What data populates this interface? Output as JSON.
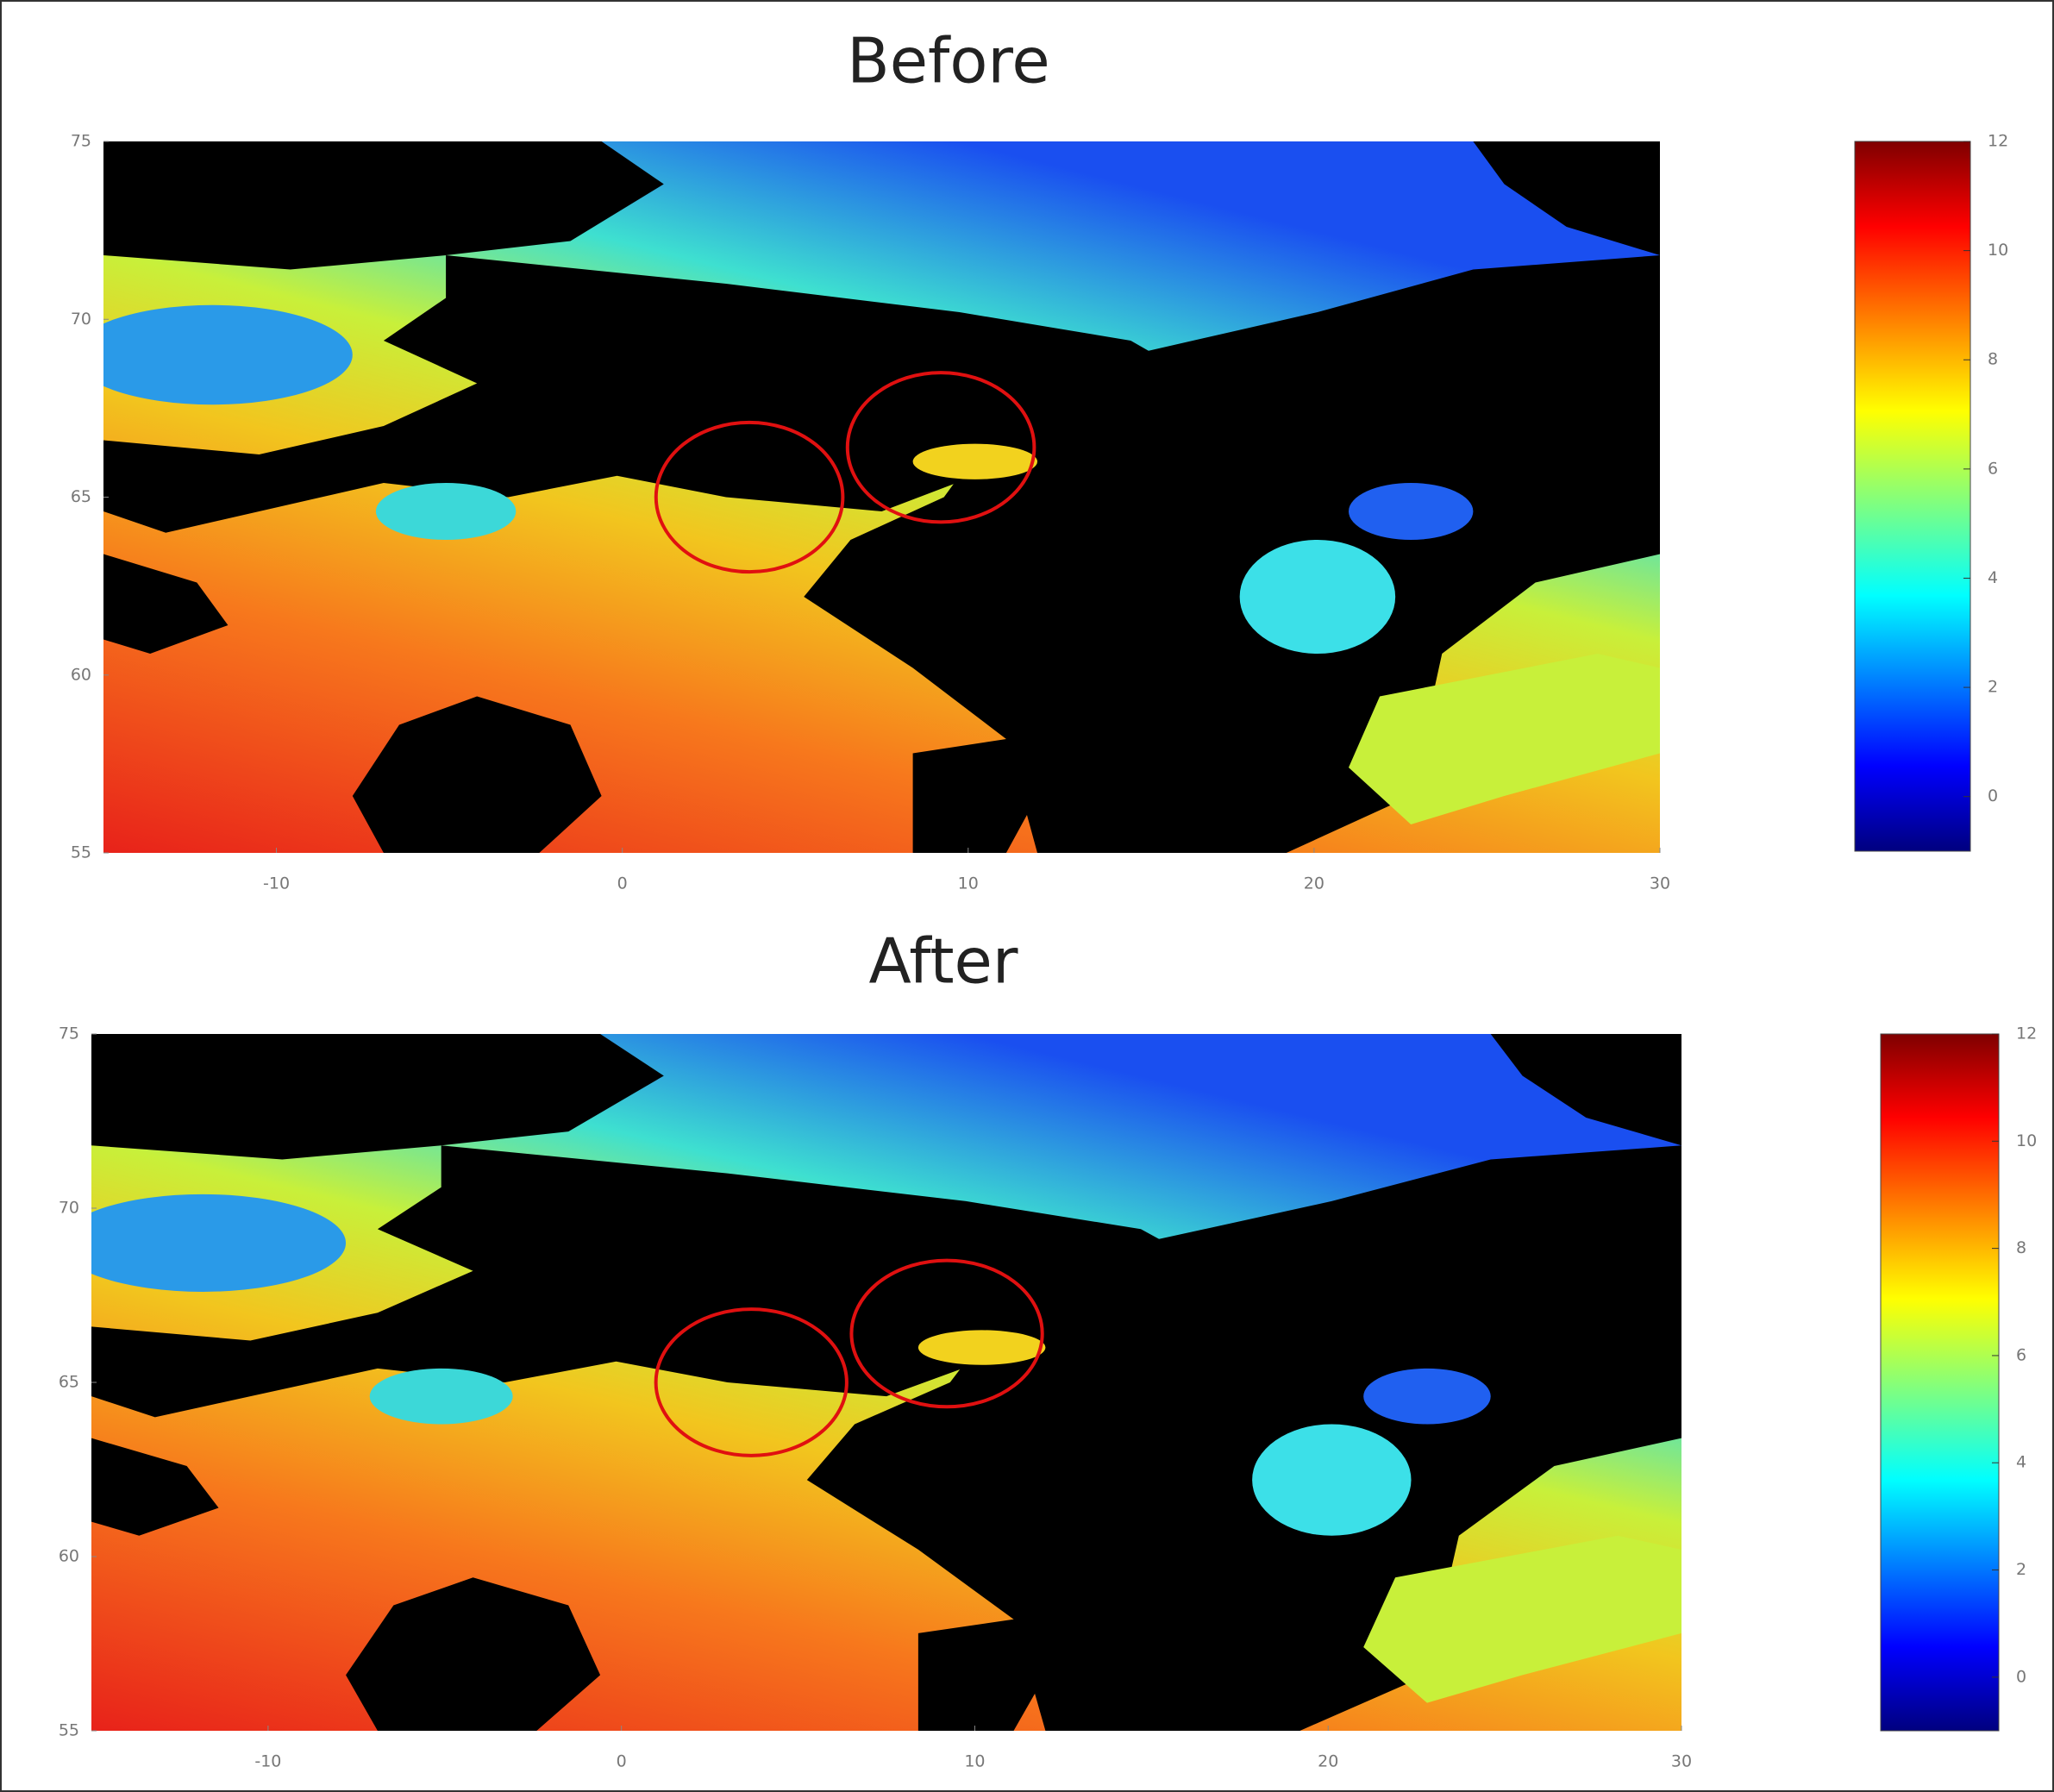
{
  "chart_data": [
    {
      "type": "heatmap",
      "title": "Before",
      "xlim": [
        -15,
        30
      ],
      "xticks": [
        -10,
        0,
        10,
        20,
        30
      ],
      "ylim": [
        55,
        75
      ],
      "yticks": [
        55,
        60,
        65,
        70,
        75
      ],
      "colorbar": {
        "lim": [
          -1,
          12
        ],
        "ticks": [
          0,
          2,
          4,
          6,
          8,
          10,
          12
        ]
      }
    },
    {
      "type": "heatmap",
      "title": "After",
      "xlim": [
        -15,
        30
      ],
      "xticks": [
        -10,
        0,
        10,
        20,
        30
      ],
      "ylim": [
        55,
        75
      ],
      "yticks": [
        55,
        60,
        65,
        70,
        75
      ],
      "colorbar": {
        "lim": [
          -1,
          12
        ],
        "ticks": [
          0,
          2,
          4,
          6,
          8,
          10,
          12
        ]
      }
    }
  ]
}
